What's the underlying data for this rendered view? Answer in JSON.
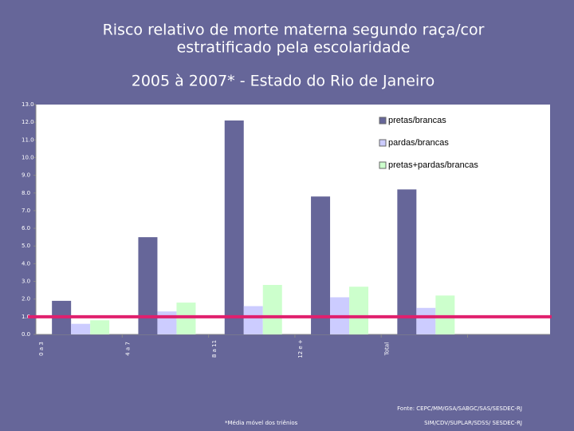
{
  "chart_data": {
    "type": "bar",
    "title": "Risco relativo de morte materna segundo raça/cor",
    "title_line2": "estratificado pela escolaridade",
    "subtitle": "2005 à 2007* - Estado do Rio de Janeiro",
    "categories": [
      "0 a 3",
      "4 a 7",
      "8 a 11",
      "12 e +",
      "Total"
    ],
    "series": [
      {
        "name": "pretas/brancas",
        "color": "#666699",
        "values": [
          1.9,
          5.5,
          12.1,
          7.8,
          8.2
        ]
      },
      {
        "name": "pardas/brancas",
        "color": "#ccccff",
        "values": [
          0.6,
          1.3,
          1.6,
          2.1,
          1.5
        ]
      },
      {
        "name": "pretas+pardas/brancas",
        "color": "#ccffcc",
        "values": [
          0.8,
          1.8,
          2.8,
          2.7,
          2.2
        ]
      }
    ],
    "ylim": [
      0,
      13
    ],
    "yticks": [
      {
        "value": 0,
        "label": "0.0"
      },
      {
        "value": 1,
        "label": "1.0"
      },
      {
        "value": 2,
        "label": "2.0"
      },
      {
        "value": 3,
        "label": "3.0"
      },
      {
        "value": 4,
        "label": "4.0"
      },
      {
        "value": 5,
        "label": "5.0"
      },
      {
        "value": 6,
        "label": "6.0"
      },
      {
        "value": 7,
        "label": "7.0"
      },
      {
        "value": 8,
        "label": "8.0"
      },
      {
        "value": 9,
        "label": "9.0"
      },
      {
        "value": 10,
        "label": "10.0"
      },
      {
        "value": 11,
        "label": "11.0"
      },
      {
        "value": 12,
        "label": "12.0"
      },
      {
        "value": 13,
        "label": "13.0"
      }
    ],
    "reference_line": {
      "value": 1,
      "color": "#e0206e"
    },
    "legend": "top-right",
    "source": "Fonte: CEPC/MM/GSA/SABGC/SAS/SESDEC-RJ",
    "footnote": "*Média móvel dos triênios",
    "source2": "SIM/CDV/SUPLAR/SDSS/ SESDEC-RJ"
  }
}
